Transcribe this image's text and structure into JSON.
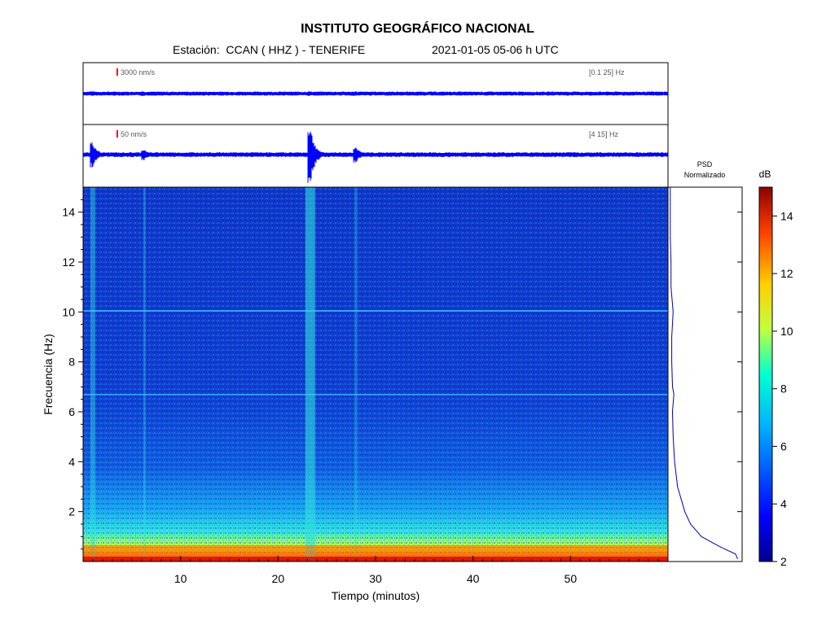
{
  "header": {
    "title": "INSTITUTO GEOGRÁFICO NACIONAL",
    "station_label": "Estación:",
    "station": "CCAN ( HHZ ) - TENERIFE",
    "datetime": "2021-01-05  05-06 h UTC"
  },
  "trace_top": {
    "scale_label": "3000 nm/s",
    "band_label": "[0.1 25] Hz"
  },
  "trace_bottom": {
    "scale_label": "50 nm/s",
    "band_label": "[4 15] Hz"
  },
  "psd": {
    "label_line1": "PSD",
    "label_line2": "Normalizado"
  },
  "colorbar": {
    "unit": "dB",
    "ticks": [
      2,
      4,
      6,
      8,
      10,
      12,
      14
    ],
    "range": [
      2,
      15
    ]
  },
  "colors": {
    "trace": "#0000ff",
    "scale_bar": "#ff0000",
    "psd_line": "#0000a0"
  },
  "chart_data": {
    "type": "heatmap",
    "xlabel": "Tiempo (minutos)",
    "ylabel": "Frecuencia (Hz)",
    "xlim": [
      0,
      60
    ],
    "ylim": [
      0,
      15
    ],
    "xticks": [
      10,
      20,
      30,
      40,
      50
    ],
    "yticks": [
      2,
      4,
      6,
      8,
      10,
      12,
      14
    ],
    "events_minutes": [
      1,
      6.3,
      23.3,
      28
    ],
    "psd_profile": {
      "freq_hz": [
        0.1,
        0.3,
        0.6,
        1,
        1.5,
        2,
        3,
        4,
        5,
        6,
        6.7,
        7,
        8,
        9,
        10,
        11,
        12,
        13,
        14,
        15
      ],
      "value": [
        0.95,
        0.92,
        0.7,
        0.45,
        0.3,
        0.22,
        0.12,
        0.08,
        0.06,
        0.05,
        0.07,
        0.05,
        0.04,
        0.04,
        0.06,
        0.03,
        0.03,
        0.02,
        0.02,
        0.02
      ]
    }
  }
}
